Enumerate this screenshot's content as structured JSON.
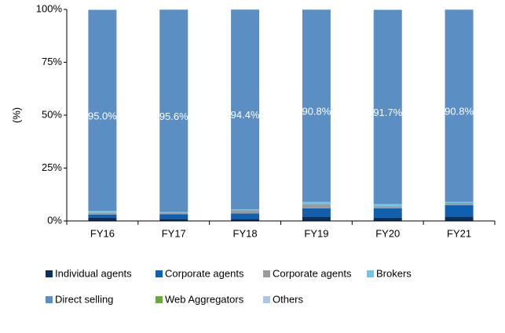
{
  "chart_data": {
    "type": "bar",
    "stacked": true,
    "y_label": "(%)",
    "categories": [
      "FY16",
      "FY17",
      "FY18",
      "FY19",
      "FY20",
      "FY21"
    ],
    "ylim": [
      0,
      100
    ],
    "yticks": [
      {
        "value": 0,
        "label": "0%"
      },
      {
        "value": 25,
        "label": "25%"
      },
      {
        "value": 50,
        "label": "50%"
      },
      {
        "value": 75,
        "label": "75%"
      },
      {
        "value": 100,
        "label": "100%"
      }
    ],
    "series": [
      {
        "name": "Individual agents",
        "color": "#0d2f5e",
        "values": [
          1.5,
          1,
          1,
          2,
          1.5,
          2
        ]
      },
      {
        "name": "Corporate agents",
        "color": "#0f60b0",
        "values": [
          1.5,
          2.2,
          2.5,
          4,
          4.5,
          5.5
        ]
      },
      {
        "name": "Corporate agents",
        "color": "#9a9a9a",
        "values": [
          1,
          0.5,
          1.5,
          2,
          1,
          1
        ]
      },
      {
        "name": "Brokers",
        "color": "#6ec6ea",
        "values": [
          0.7,
          0.5,
          0.5,
          1,
          1,
          0.5
        ]
      },
      {
        "name": "Direct selling",
        "color": "#5b8fc4",
        "values": [
          95.0,
          95.6,
          94.4,
          90.8,
          91.7,
          90.8
        ],
        "value_labels": [
          "95.0%",
          "95.6%",
          "94.4%",
          "90.8%",
          "91.7%",
          "90.8%"
        ]
      },
      {
        "name": "Web Aggregators",
        "color": "#6aaa3a",
        "values": [
          0,
          0,
          0,
          0,
          0,
          0
        ]
      },
      {
        "name": "Others",
        "color": "#a8c8e4",
        "values": [
          0.3,
          0.2,
          0.1,
          0.2,
          0.3,
          0.2
        ]
      }
    ]
  }
}
